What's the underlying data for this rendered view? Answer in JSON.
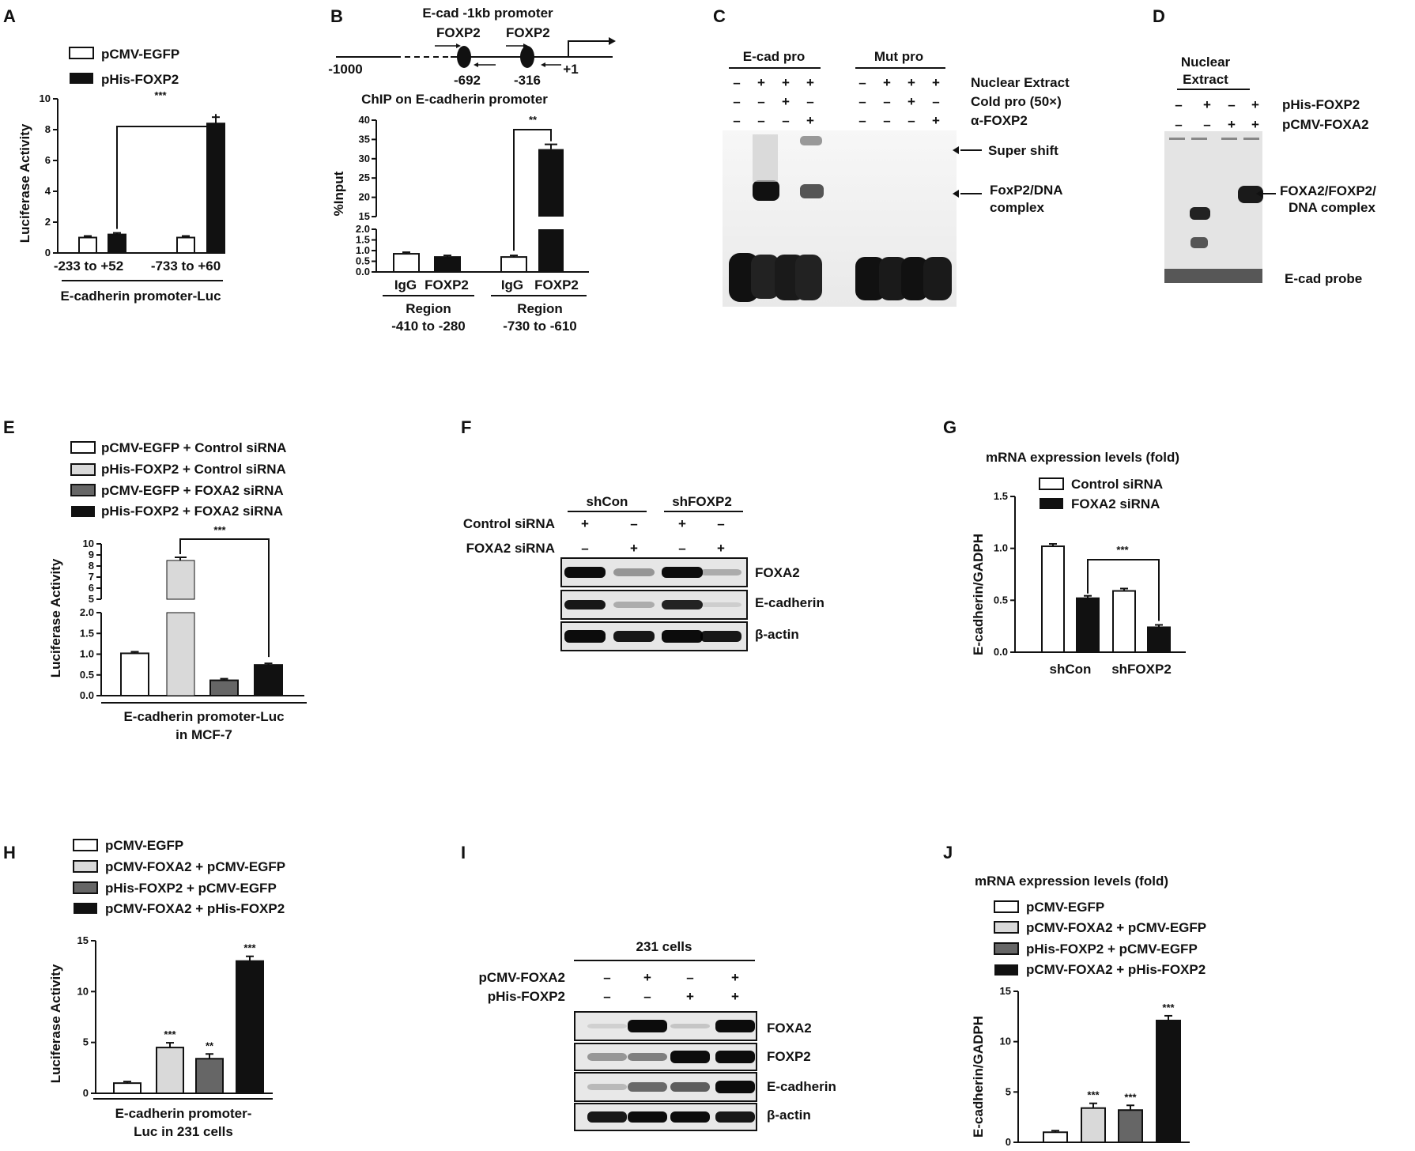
{
  "panels": {
    "A": {
      "letter": "A",
      "legend": [
        "pCMV-EGFP",
        "pHis-FOXP2"
      ],
      "ylabel": "Luciferase Activity",
      "groups": [
        "-233 to +52",
        "-733 to +60"
      ],
      "xlabel": "E-cadherin promoter-Luc",
      "sig": "***"
    },
    "B": {
      "letter": "B",
      "map_title": "E-cad -1kb promoter",
      "sites": [
        "FOXP2",
        "FOXP2"
      ],
      "positions": [
        "-1000",
        "-692",
        "-316",
        "+1"
      ],
      "chart_title": "ChIP on E-cadherin promoter",
      "ylabel": "%Input",
      "bars": [
        "IgG",
        "FOXP2",
        "IgG",
        "FOXP2"
      ],
      "regions": [
        "Region",
        "-410 to -280",
        "Region",
        "-730 to -610"
      ],
      "sig": "**"
    },
    "C": {
      "letter": "C",
      "headers": [
        "E-cad pro",
        "Mut pro"
      ],
      "rows": [
        "Nuclear Extract",
        "Cold pro (50×)",
        "α-FOXP2"
      ],
      "signs": [
        [
          "–",
          "+",
          "+",
          "+",
          "–",
          "+",
          "+",
          "+"
        ],
        [
          "–",
          "–",
          "+",
          "–",
          "–",
          "–",
          "+",
          "–"
        ],
        [
          "–",
          "–",
          "–",
          "+",
          "–",
          "–",
          "–",
          "+"
        ]
      ],
      "annotations": [
        "Super shift",
        "FoxP2/DNA",
        "complex"
      ]
    },
    "D": {
      "letter": "D",
      "header": [
        "Nuclear",
        "Extract"
      ],
      "rows": [
        "pHis-FOXP2",
        "pCMV-FOXA2"
      ],
      "signs": [
        [
          "–",
          "+",
          "–",
          "+"
        ],
        [
          "–",
          "–",
          "+",
          "+"
        ]
      ],
      "annotations": [
        "FOXA2/FOXP2/",
        "DNA complex",
        "E-cad probe"
      ]
    },
    "E": {
      "letter": "E",
      "legend": [
        "pCMV-EGFP + Control siRNA",
        "pHis-FOXP2 + Control siRNA",
        "pCMV-EGFP + FOXA2 siRNA",
        "pHis-FOXP2 + FOXA2 siRNA"
      ],
      "ylabel": "Luciferase Activity",
      "xlabel": [
        "E-cadherin promoter-Luc",
        "in MCF-7"
      ],
      "sig": "***"
    },
    "F": {
      "letter": "F",
      "groups": [
        "shCon",
        "shFOXP2"
      ],
      "rows": [
        "Control siRNA",
        "FOXA2 siRNA"
      ],
      "signs": [
        [
          "+",
          "–",
          "+",
          "–"
        ],
        [
          "–",
          "+",
          "–",
          "+"
        ]
      ],
      "blots": [
        "FOXA2",
        "E-cadherin",
        "β-actin"
      ]
    },
    "G": {
      "letter": "G",
      "title": "mRNA  expression levels (fold)",
      "legend": [
        "Control siRNA",
        "FOXA2 siRNA"
      ],
      "ylabel": "E-cadherin/GADPH",
      "groups": [
        "shCon",
        "shFOXP2"
      ],
      "sig": "***"
    },
    "H": {
      "letter": "H",
      "legend": [
        "pCMV-EGFP",
        "pCMV-FOXA2 + pCMV-EGFP",
        "pHis-FOXP2 + pCMV-EGFP",
        "pCMV-FOXA2 + pHis-FOXP2"
      ],
      "ylabel": "Luciferase Activity",
      "xlabel": [
        "E-cadherin promoter-",
        "Luc in 231 cells"
      ],
      "sigs": [
        "***",
        "**",
        "***"
      ]
    },
    "I": {
      "letter": "I",
      "header": "231 cells",
      "rows": [
        "pCMV-FOXA2",
        "pHis-FOXP2"
      ],
      "signs": [
        [
          "–",
          "+",
          "–",
          "+"
        ],
        [
          "–",
          "–",
          "+",
          "+"
        ]
      ],
      "blots": [
        "FOXA2",
        "FOXP2",
        "E-cadherin",
        "β-actin"
      ]
    },
    "J": {
      "letter": "J",
      "title": "mRNA  expression levels (fold)",
      "legend": [
        "pCMV-EGFP",
        "pCMV-FOXA2 + pCMV-EGFP",
        "pHis-FOXP2 + pCMV-EGFP",
        "pCMV-FOXA2 + pHis-FOXP2"
      ],
      "ylabel": "E-cadherin/GADPH",
      "sigs": [
        "***",
        "***",
        "***"
      ]
    }
  },
  "colors": {
    "white": "#ffffff",
    "light": "#d9d9d9",
    "mid": "#666666",
    "dark": "#111111"
  },
  "chart_data": [
    {
      "type": "bar",
      "panel": "A",
      "categories": [
        "-233 to +52",
        "-733 to +60"
      ],
      "series": [
        {
          "name": "pCMV-EGFP",
          "values": [
            1.0,
            1.0
          ]
        },
        {
          "name": "pHis-FOXP2",
          "values": [
            1.2,
            8.4
          ]
        }
      ],
      "ylabel": "Luciferase Activity",
      "xlabel": "E-cadherin promoter-Luc",
      "ylim": [
        0,
        10
      ],
      "yticks": [
        0,
        2,
        4,
        6,
        8,
        10
      ]
    },
    {
      "type": "bar",
      "panel": "B",
      "categories": [
        "IgG",
        "FOXP2",
        "IgG",
        "FOXP2"
      ],
      "values": [
        0.85,
        0.7,
        0.7,
        32.5
      ],
      "title": "ChIP on E-cadherin promoter",
      "ylabel": "%Input",
      "ylim": [
        0,
        40
      ],
      "yticks": [
        0.0,
        0.5,
        1.0,
        1.5,
        2.0,
        15,
        20,
        25,
        30,
        35,
        40
      ]
    },
    {
      "type": "bar",
      "panel": "E",
      "categories": [
        "pCMV-EGFP + Control siRNA",
        "pHis-FOXP2 + Control siRNA",
        "pCMV-EGFP + FOXA2 siRNA",
        "pHis-FOXP2 + FOXA2 siRNA"
      ],
      "values": [
        1.02,
        8.5,
        0.37,
        0.74
      ],
      "ylabel": "Luciferase Activity",
      "ylim": [
        0,
        10
      ],
      "yticks": [
        0.0,
        0.5,
        1.0,
        1.5,
        2.0,
        5,
        6,
        7,
        8,
        9,
        10
      ]
    },
    {
      "type": "bar",
      "panel": "G",
      "categories": [
        "shCon",
        "shFOXP2"
      ],
      "series": [
        {
          "name": "Control siRNA",
          "values": [
            1.02,
            0.59
          ]
        },
        {
          "name": "FOXA2 siRNA",
          "values": [
            0.52,
            0.24
          ]
        }
      ],
      "ylabel": "E-cadherin/GADPH",
      "ylim": [
        0,
        1.5
      ],
      "yticks": [
        0.0,
        0.5,
        1.0,
        1.5
      ]
    },
    {
      "type": "bar",
      "panel": "H",
      "categories": [
        "pCMV-EGFP",
        "pCMV-FOXA2 + pCMV-EGFP",
        "pHis-FOXP2 + pCMV-EGFP",
        "pCMV-FOXA2 + pHis-FOXP2"
      ],
      "values": [
        1.0,
        4.5,
        3.4,
        13.0
      ],
      "ylabel": "Luciferase Activity",
      "ylim": [
        0,
        15
      ],
      "yticks": [
        0,
        5,
        10,
        15
      ]
    },
    {
      "type": "bar",
      "panel": "J",
      "categories": [
        "pCMV-EGFP",
        "pCMV-FOXA2 + pCMV-EGFP",
        "pHis-FOXP2 + pCMV-EGFP",
        "pCMV-FOXA2 + pHis-FOXP2"
      ],
      "values": [
        1.0,
        3.4,
        3.2,
        12.1
      ],
      "ylabel": "E-cadherin/GADPH",
      "ylim": [
        0,
        15
      ],
      "yticks": [
        0,
        5,
        10,
        15
      ]
    }
  ]
}
